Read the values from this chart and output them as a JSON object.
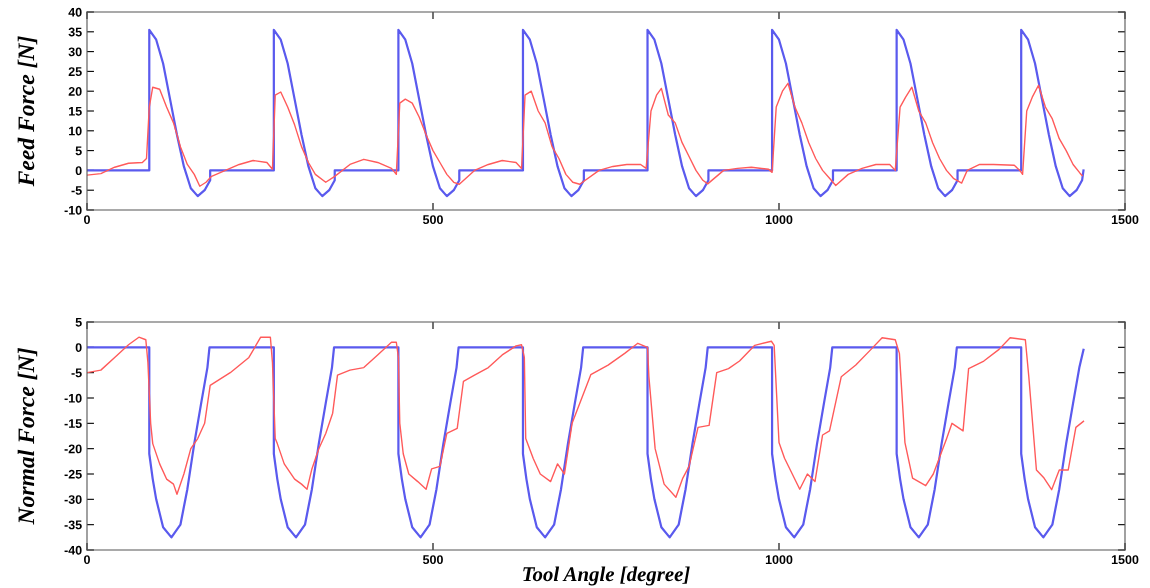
{
  "chart_data": [
    {
      "type": "line",
      "ylabel": "Feed Force [N]",
      "xlim": [
        0,
        1500
      ],
      "xticks": [
        0,
        500,
        1000,
        1500
      ],
      "ylim": [
        -10,
        40
      ],
      "yticks": [
        -10,
        -5,
        0,
        5,
        10,
        15,
        20,
        25,
        30,
        35,
        40
      ],
      "grid": false,
      "marker": "none",
      "line_style": "solid",
      "series": [
        {
          "color": "#5a5aee",
          "x": [
            0,
            90,
            90,
            100,
            110,
            120,
            130,
            140,
            150,
            160,
            170,
            178,
            178,
            180,
            270,
            270,
            280,
            290,
            300,
            310,
            320,
            330,
            340,
            350,
            358,
            358,
            360,
            450,
            450,
            460,
            470,
            480,
            490,
            500,
            510,
            520,
            530,
            538,
            538,
            540,
            630,
            630,
            640,
            650,
            660,
            670,
            680,
            690,
            700,
            710,
            718,
            718,
            720,
            810,
            810,
            820,
            830,
            840,
            850,
            860,
            870,
            880,
            890,
            898,
            898,
            900,
            990,
            990,
            1000,
            1010,
            1020,
            1030,
            1040,
            1050,
            1060,
            1070,
            1078,
            1078,
            1080,
            1170,
            1170,
            1180,
            1190,
            1200,
            1210,
            1220,
            1230,
            1240,
            1250,
            1258,
            1258,
            1260,
            1350,
            1350,
            1360,
            1370,
            1380,
            1390,
            1400,
            1410,
            1420,
            1430,
            1438,
            1440
          ],
          "values": [
            0,
            0,
            35.5,
            33,
            27,
            18,
            9,
            1,
            -4.5,
            -6.5,
            -5,
            -2.5,
            0,
            0,
            0,
            35.5,
            33,
            27,
            18,
            9,
            1,
            -4.5,
            -6.5,
            -5,
            -2.5,
            0,
            0,
            0,
            35.5,
            33,
            27,
            18,
            9,
            1,
            -4.5,
            -6.5,
            -5,
            -2.5,
            0,
            0,
            0,
            35.5,
            33,
            27,
            18,
            9,
            1,
            -4.5,
            -6.5,
            -5,
            -2.5,
            0,
            0,
            0,
            35.5,
            33,
            27,
            18,
            9,
            1,
            -4.5,
            -6.5,
            -5,
            -2.5,
            0,
            0,
            0,
            35.5,
            33,
            27,
            18,
            9,
            1,
            -4.5,
            -6.5,
            -5,
            -2.5,
            0,
            0,
            0,
            35.5,
            33,
            27,
            18,
            9,
            1,
            -4.5,
            -6.5,
            -5,
            -2.5,
            0,
            0,
            0,
            35.5,
            33,
            27,
            18,
            9,
            1,
            -4.5,
            -6.5,
            -5,
            -2.5,
            0
          ]
        },
        {
          "color": "#ff5a5a",
          "x": [
            0,
            20,
            40,
            60,
            80,
            86,
            90,
            95,
            105,
            115,
            125,
            135,
            145,
            155,
            163,
            172,
            180,
            200,
            220,
            240,
            260,
            268,
            272,
            280,
            290,
            300,
            310,
            320,
            330,
            345,
            358,
            380,
            400,
            420,
            440,
            447,
            452,
            460,
            470,
            480,
            490,
            500,
            510,
            520,
            530,
            538,
            560,
            580,
            600,
            620,
            628,
            633,
            642,
            652,
            662,
            672,
            682,
            692,
            702,
            712,
            740,
            760,
            780,
            800,
            808,
            815,
            823,
            830,
            840,
            850,
            860,
            870,
            880,
            890,
            897,
            920,
            940,
            960,
            985,
            990,
            996,
            1005,
            1013,
            1023,
            1033,
            1043,
            1053,
            1063,
            1073,
            1082,
            1100,
            1120,
            1140,
            1160,
            1168,
            1175,
            1183,
            1192,
            1202,
            1212,
            1222,
            1232,
            1242,
            1252,
            1264,
            1272,
            1290,
            1310,
            1340,
            1348,
            1352,
            1358,
            1366,
            1375,
            1385,
            1395,
            1405,
            1415,
            1425,
            1435,
            1438
          ],
          "values": [
            -1.2,
            -0.8,
            0.8,
            1.8,
            2,
            3,
            16,
            21,
            20.5,
            16,
            12,
            6,
            1.5,
            -1,
            -4,
            -3,
            -1.5,
            0,
            1.5,
            2.5,
            2,
            0.3,
            19,
            19.8,
            16,
            11.5,
            6,
            2,
            -1,
            -3,
            -1.5,
            1.5,
            2.8,
            2,
            0.5,
            -1,
            17,
            18,
            17,
            13.5,
            9,
            5,
            2,
            -1,
            -3,
            -3.5,
            0,
            1.5,
            2.5,
            2,
            0.5,
            19,
            20,
            15,
            12,
            6,
            3,
            -1,
            -3,
            -3.5,
            0,
            1,
            1.5,
            1.5,
            0.5,
            15,
            19,
            20.7,
            14,
            12,
            7,
            3.5,
            0,
            -2.5,
            -3.4,
            0,
            0.5,
            0.8,
            0.3,
            -0.5,
            16,
            20,
            22,
            16,
            12,
            7,
            3,
            0,
            -2,
            -3.8,
            -1,
            0.5,
            1.5,
            1.5,
            0,
            16,
            18.5,
            21,
            15,
            12,
            7,
            3,
            0,
            -2,
            -3.2,
            0,
            1.5,
            1.5,
            1.3,
            0,
            -1,
            15,
            18.5,
            21.5,
            16,
            13,
            8,
            5,
            1.5,
            -0.7,
            -1.3
          ]
        }
      ]
    },
    {
      "type": "line",
      "xlabel": "Tool Angle [degree]",
      "ylabel": "Normal Force [N]",
      "xlim": [
        0,
        1500
      ],
      "xticks": [
        0,
        500,
        1000,
        1500
      ],
      "ylim": [
        -40,
        5
      ],
      "yticks": [
        -40,
        -35,
        -30,
        -25,
        -20,
        -15,
        -10,
        -5,
        0,
        5
      ],
      "grid": false,
      "marker": "none",
      "line_style": "solid",
      "series": [
        {
          "color": "#5a5aee",
          "x": [
            0,
            90,
            90,
            95,
            100,
            110,
            122,
            135,
            145,
            155,
            165,
            174,
            177,
            180,
            270,
            270,
            275,
            280,
            290,
            302,
            315,
            325,
            335,
            345,
            354,
            357,
            360,
            450,
            450,
            455,
            460,
            470,
            482,
            495,
            505,
            515,
            525,
            534,
            537,
            540,
            630,
            630,
            635,
            640,
            650,
            662,
            675,
            685,
            695,
            705,
            714,
            717,
            720,
            810,
            810,
            815,
            820,
            830,
            842,
            855,
            865,
            875,
            885,
            894,
            897,
            900,
            990,
            990,
            995,
            1000,
            1010,
            1022,
            1035,
            1045,
            1055,
            1065,
            1074,
            1077,
            1080,
            1170,
            1170,
            1175,
            1180,
            1190,
            1202,
            1215,
            1225,
            1235,
            1245,
            1254,
            1257,
            1260,
            1350,
            1350,
            1355,
            1360,
            1370,
            1382,
            1395,
            1405,
            1415,
            1425,
            1434,
            1440
          ],
          "values": [
            0,
            0,
            -21,
            -26,
            -30,
            -35.5,
            -37.5,
            -35,
            -28,
            -19,
            -11,
            -4,
            0,
            0,
            0,
            -21,
            -26,
            -30,
            -35.5,
            -37.5,
            -35,
            -28,
            -19,
            -11,
            -4,
            0,
            0,
            0,
            -21,
            -26,
            -30,
            -35.5,
            -37.5,
            -35,
            -28,
            -19,
            -11,
            -4,
            0,
            0,
            0,
            -21,
            -26,
            -30,
            -35.5,
            -37.5,
            -35,
            -28,
            -19,
            -11,
            -4,
            0,
            0,
            0,
            -21,
            -26,
            -30,
            -35.5,
            -37.5,
            -35,
            -28,
            -19,
            -11,
            -4,
            0,
            0,
            0,
            -21,
            -26,
            -30,
            -35.5,
            -37.5,
            -35,
            -28,
            -19,
            -11,
            -4,
            0,
            0,
            0,
            -21,
            -26,
            -30,
            -35.5,
            -37.5,
            -35,
            -28,
            -19,
            -11,
            -4,
            0,
            0,
            0,
            -21,
            -26,
            -30,
            -35.5,
            -37.5,
            -35,
            -28,
            -19,
            -11,
            -4,
            -0.5
          ]
        },
        {
          "color": "#ff5a5a",
          "x": [
            0,
            20,
            40,
            60,
            75,
            85,
            88,
            92,
            95,
            105,
            115,
            125,
            130,
            140,
            150,
            160,
            170,
            178,
            207,
            234,
            251,
            265,
            268,
            272,
            275,
            285,
            300,
            310,
            318,
            325,
            335,
            345,
            355,
            362,
            380,
            400,
            420,
            440,
            447,
            450,
            452,
            457,
            465,
            478,
            490,
            498,
            510,
            520,
            535,
            544,
            560,
            580,
            600,
            620,
            628,
            632,
            634,
            645,
            655,
            670,
            680,
            690,
            701,
            728,
            753,
            777,
            796,
            810,
            812,
            821,
            834,
            851,
            861,
            870,
            883,
            899,
            910,
            927,
            943,
            965,
            989,
            993,
            1000,
            1008,
            1030,
            1041,
            1052,
            1063,
            1073,
            1090,
            1111,
            1133,
            1149,
            1168,
            1174,
            1182,
            1193,
            1212,
            1223,
            1242,
            1250,
            1266,
            1274,
            1296,
            1318,
            1334,
            1356,
            1361,
            1372,
            1383,
            1394,
            1405,
            1418,
            1429,
            1440
          ],
          "values": [
            -5,
            -4.5,
            -2,
            0.5,
            2,
            1.5,
            -3,
            -15,
            -19,
            -23,
            -26,
            -27,
            -29,
            -25,
            -20,
            -18,
            -15,
            -7.5,
            -5,
            -2,
            2,
            2,
            -3,
            -18,
            -19,
            -23,
            -26,
            -27,
            -28,
            -24,
            -20,
            -17,
            -13,
            -5.5,
            -4.5,
            -4,
            -1.5,
            1,
            1,
            -2,
            -15,
            -21,
            -25,
            -26.5,
            -28,
            -24,
            -23.5,
            -17,
            -16,
            -6.7,
            -5.5,
            -4,
            -1.5,
            0.3,
            0.5,
            -2,
            -18,
            -22,
            -25,
            -26.5,
            -23,
            -25,
            -15,
            -5.4,
            -3.5,
            -1.2,
            0.8,
            0,
            -5.8,
            -20,
            -27,
            -29.6,
            -25.8,
            -23.5,
            -15.8,
            -15.4,
            -5,
            -4.2,
            -2.7,
            0.4,
            1.2,
            0.4,
            -18.8,
            -21.9,
            -28,
            -25,
            -26.5,
            -17.3,
            -16.5,
            -5.8,
            -3.5,
            -0.4,
            1.9,
            1.5,
            -1.2,
            -18.8,
            -25.8,
            -27.3,
            -25,
            -18.1,
            -15,
            -16.5,
            -4.2,
            -2.7,
            -0.4,
            1.9,
            1.5,
            -5.8,
            -24.2,
            -25.8,
            -28.1,
            -24.2,
            -24.2,
            -15.8,
            -14.6
          ]
        }
      ]
    }
  ]
}
